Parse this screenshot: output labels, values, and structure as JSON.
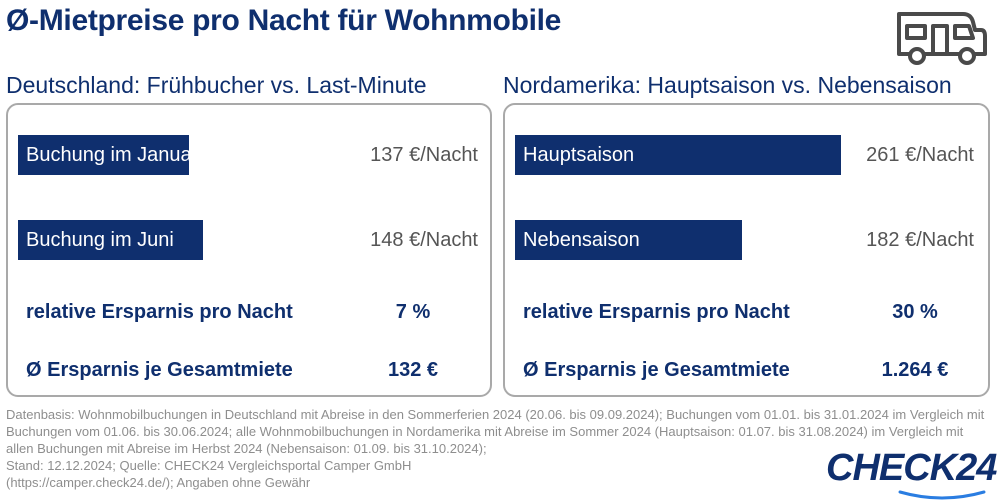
{
  "header": {
    "title": "Ø-Mietpreise pro Nacht für Wohnmobile",
    "icon": "camper-van-icon"
  },
  "colors": {
    "primary": "#0f2f6e",
    "value_text": "#555555",
    "footnote": "#8e8e8e"
  },
  "panels": [
    {
      "title": "Deutschland: Frühbucher vs. Last-Minute",
      "bars": [
        {
          "label": "Buchung im Januar",
          "value_label": "137 €/Nacht"
        },
        {
          "label": "Buchung im Juni",
          "value_label": "148 €/Nacht"
        }
      ],
      "stats": [
        {
          "label": "relative Ersparnis pro Nacht",
          "value": "7 %"
        },
        {
          "label": "Ø Ersparnis je Gesamtmiete",
          "value": "132 €"
        }
      ]
    },
    {
      "title": "Nordamerika: Hauptsaison vs. Nebensaison",
      "bars": [
        {
          "label": "Hauptsaison",
          "value_label": "261 €/Nacht"
        },
        {
          "label": "Nebensaison",
          "value_label": "182 €/Nacht"
        }
      ],
      "stats": [
        {
          "label": "relative Ersparnis pro Nacht",
          "value": "30 %"
        },
        {
          "label": "Ø Ersparnis je Gesamtmiete",
          "value": "1.264 €"
        }
      ]
    }
  ],
  "chart_data": [
    {
      "type": "bar",
      "orientation": "horizontal",
      "title": "Deutschland: Frühbucher vs. Last-Minute",
      "categories": [
        "Buchung im Januar",
        "Buchung im Juni"
      ],
      "values": [
        137,
        148
      ],
      "unit": "€/Nacht"
    },
    {
      "type": "bar",
      "orientation": "horizontal",
      "title": "Nordamerika: Hauptsaison vs. Nebensaison",
      "categories": [
        "Hauptsaison",
        "Nebensaison"
      ],
      "values": [
        261,
        182
      ],
      "unit": "€/Nacht"
    }
  ],
  "footnote": "Datenbasis: Wohnmobilbuchungen in Deutschland mit Abreise in den Sommerferien 2024 (20.06. bis 09.09.2024); Buchungen vom 01.01. bis 31.01.2024 im Vergleich mit Buchungen vom 01.06. bis 30.06.2024; alle Wohnmobilbuchungen in Nordamerika mit Abreise im Sommer 2024 (Hauptsaison: 01.07. bis 31.08.2024) im Vergleich mit allen Buchungen mit Abreise im Herbst 2024 (Nebensaison: 01.09. bis 31.10.2024);\n Stand: 12.12.2024; Quelle: CHECK24 Vergleichsportal Camper GmbH\n(https://camper.check24.de/); Angaben ohne Gewähr",
  "brand": {
    "logo_text": "CHECK24"
  }
}
